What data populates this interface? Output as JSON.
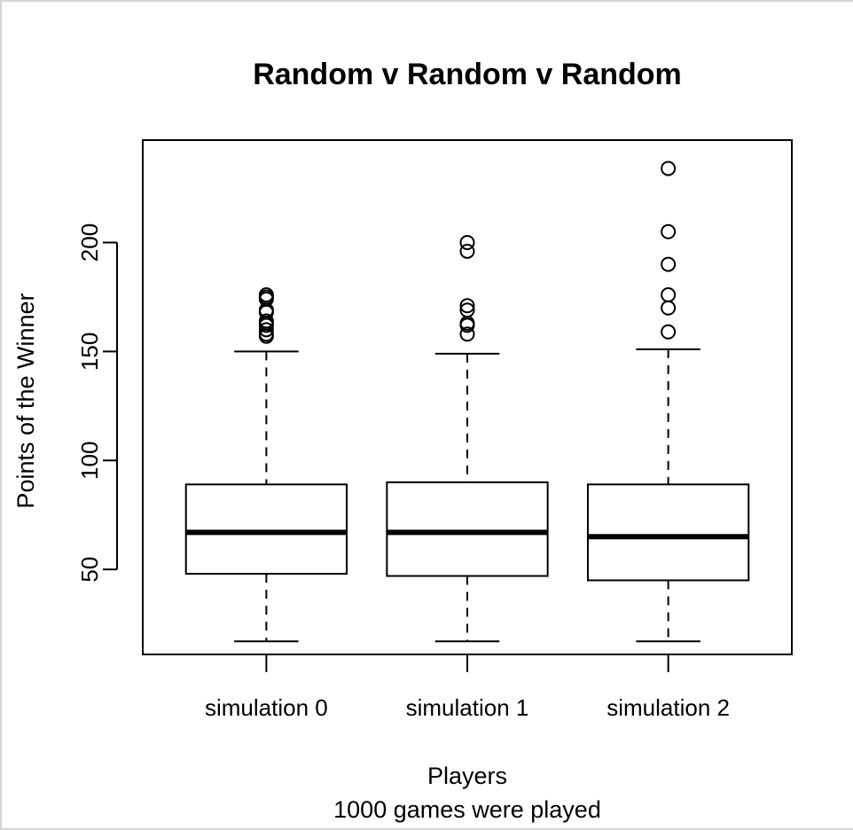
{
  "chart_data": {
    "type": "boxplot",
    "title": "Random v Random v Random",
    "xlabel": "Players",
    "sub": "1000 games were played",
    "ylabel": "Points of the Winner",
    "ylim": [
      11,
      247
    ],
    "yticks": [
      50,
      100,
      150,
      200
    ],
    "grid": false,
    "series": [
      {
        "name": "simulation 0",
        "whisker_low": 17,
        "q1": 48,
        "median": 67,
        "q3": 89,
        "whisker_high": 150,
        "outliers": [
          157,
          158,
          160,
          162,
          163,
          164,
          168,
          169,
          174,
          175,
          176
        ]
      },
      {
        "name": "simulation 1",
        "whisker_low": 17,
        "q1": 47,
        "median": 67,
        "q3": 90,
        "whisker_high": 149,
        "outliers": [
          158,
          162,
          163,
          169,
          171,
          196,
          200
        ]
      },
      {
        "name": "simulation 2",
        "whisker_low": 17,
        "q1": 45,
        "median": 65,
        "q3": 89,
        "whisker_high": 151,
        "outliers": [
          159,
          170,
          176,
          190,
          205,
          234
        ]
      }
    ]
  }
}
